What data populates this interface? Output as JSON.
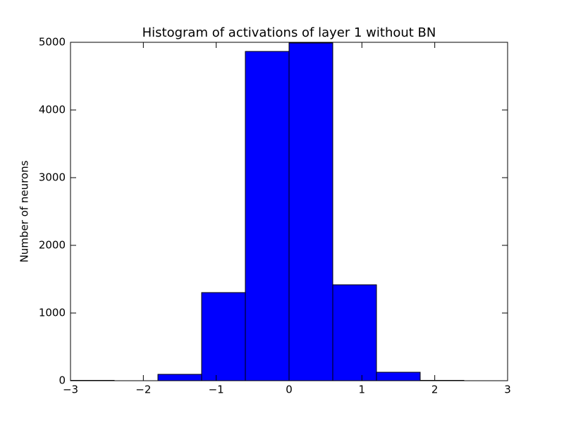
{
  "chart_data": {
    "type": "histogram",
    "title": "Histogram of activations of layer 1  without BN",
    "ylabel": "Number of neurons",
    "bins": [
      -3,
      -2.4,
      -1.8,
      -1.2,
      -0.6,
      0,
      0.6,
      1.2,
      1.8,
      2.4,
      3
    ],
    "values": [
      5,
      0,
      94,
      1302,
      4865,
      4990,
      1417,
      125,
      5,
      0
    ],
    "color": "#0000ff",
    "xlim": [
      -3,
      3
    ],
    "xticks": [
      {
        "value": -3,
        "label": "−3"
      },
      {
        "value": -2,
        "label": "−2"
      },
      {
        "value": -1,
        "label": "−1"
      },
      0,
      1,
      2,
      3
    ],
    "ylim": [
      0,
      5000
    ],
    "yticks": [
      0,
      1000,
      2000,
      3000,
      4000,
      5000
    ],
    "grid": false
  }
}
